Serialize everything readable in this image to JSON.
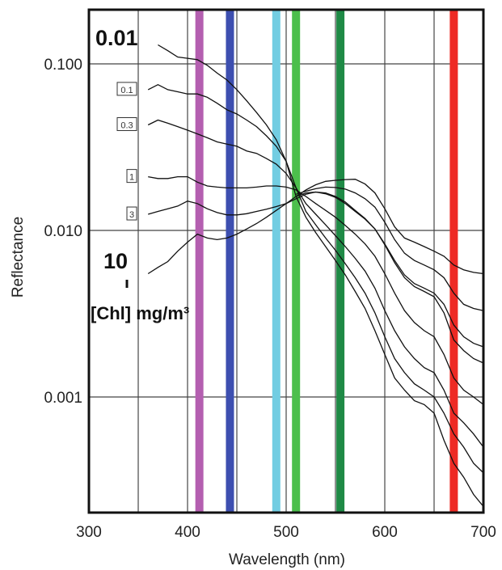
{
  "chart_data": {
    "type": "line",
    "title": "",
    "xlabel": "Wavelength (nm)",
    "ylabel": "Reflectance",
    "xlim": [
      300,
      700
    ],
    "ylim": [
      0.0002,
      0.2
    ],
    "yscale": "log",
    "grid": true,
    "x_ticks": [
      "300",
      "400",
      "500",
      "600",
      "700"
    ],
    "y_ticks": [
      "0.100",
      "0.010",
      "0.001"
    ],
    "y_tick_values": [
      0.1,
      0.01,
      0.001
    ],
    "legend_title": "[Chl] mg/m³",
    "series": [
      {
        "name": "0.01",
        "x": [
          370,
          380,
          390,
          400,
          410,
          420,
          430,
          440,
          450,
          460,
          470,
          480,
          490,
          500,
          510,
          520,
          530,
          540,
          550,
          560,
          570,
          580,
          590,
          600,
          610,
          620,
          630,
          640,
          650,
          660,
          670,
          680,
          690,
          700
        ],
        "values": [
          0.13,
          0.12,
          0.11,
          0.108,
          0.106,
          0.098,
          0.088,
          0.08,
          0.07,
          0.06,
          0.051,
          0.043,
          0.035,
          0.026,
          0.016,
          0.012,
          0.0097,
          0.008,
          0.0066,
          0.0054,
          0.0043,
          0.0034,
          0.0025,
          0.0018,
          0.0013,
          0.0011,
          0.00095,
          0.0009,
          0.0008,
          0.00055,
          0.0004,
          0.00033,
          0.00026,
          0.00022
        ]
      },
      {
        "name": "0.1",
        "x": [
          360,
          370,
          380,
          390,
          400,
          410,
          420,
          430,
          440,
          450,
          460,
          470,
          480,
          490,
          500,
          510,
          520,
          530,
          540,
          550,
          560,
          570,
          580,
          590,
          600,
          610,
          620,
          630,
          640,
          650,
          660,
          670,
          680,
          690,
          700
        ],
        "values": [
          0.07,
          0.075,
          0.07,
          0.068,
          0.066,
          0.066,
          0.063,
          0.058,
          0.053,
          0.05,
          0.046,
          0.042,
          0.037,
          0.032,
          0.026,
          0.018,
          0.013,
          0.0108,
          0.009,
          0.0076,
          0.0063,
          0.0052,
          0.0042,
          0.0032,
          0.0023,
          0.0017,
          0.0014,
          0.0012,
          0.0011,
          0.001,
          0.0008,
          0.0006,
          0.0005,
          0.0004,
          0.00035
        ]
      },
      {
        "name": "0.3",
        "x": [
          360,
          370,
          380,
          390,
          400,
          410,
          420,
          430,
          440,
          450,
          460,
          470,
          480,
          490,
          500,
          510,
          520,
          530,
          540,
          550,
          560,
          570,
          580,
          590,
          600,
          610,
          620,
          630,
          640,
          650,
          660,
          670,
          680,
          690,
          700
        ],
        "values": [
          0.043,
          0.046,
          0.044,
          0.042,
          0.04,
          0.038,
          0.036,
          0.034,
          0.033,
          0.032,
          0.03,
          0.029,
          0.027,
          0.025,
          0.022,
          0.018,
          0.0145,
          0.0125,
          0.0108,
          0.0093,
          0.008,
          0.0068,
          0.0057,
          0.0045,
          0.0033,
          0.0025,
          0.002,
          0.0017,
          0.0015,
          0.0014,
          0.0011,
          0.0008,
          0.0007,
          0.0006,
          0.0005
        ]
      },
      {
        "name": "1",
        "x": [
          360,
          370,
          380,
          390,
          400,
          410,
          420,
          430,
          440,
          450,
          460,
          470,
          480,
          490,
          500,
          510,
          520,
          530,
          540,
          550,
          560,
          570,
          580,
          590,
          600,
          610,
          620,
          630,
          640,
          650,
          660,
          670,
          680,
          690,
          700
        ],
        "values": [
          0.021,
          0.0205,
          0.0205,
          0.021,
          0.021,
          0.0195,
          0.0185,
          0.0182,
          0.018,
          0.018,
          0.018,
          0.0182,
          0.0185,
          0.0185,
          0.0182,
          0.0175,
          0.016,
          0.0145,
          0.0132,
          0.012,
          0.0107,
          0.0095,
          0.0083,
          0.007,
          0.0055,
          0.0042,
          0.0033,
          0.0028,
          0.0025,
          0.0023,
          0.0018,
          0.0013,
          0.0011,
          0.001,
          0.0009
        ]
      },
      {
        "name": "3",
        "x": [
          360,
          370,
          380,
          390,
          400,
          410,
          420,
          430,
          440,
          450,
          460,
          470,
          480,
          490,
          500,
          510,
          520,
          530,
          540,
          550,
          560,
          570,
          580,
          590,
          600,
          610,
          620,
          630,
          640,
          650,
          660,
          670,
          680,
          690,
          700
        ],
        "values": [
          0.0125,
          0.013,
          0.0135,
          0.014,
          0.015,
          0.0145,
          0.0135,
          0.0128,
          0.0124,
          0.0124,
          0.0126,
          0.013,
          0.0134,
          0.0139,
          0.0145,
          0.0155,
          0.0165,
          0.017,
          0.0168,
          0.016,
          0.0148,
          0.0132,
          0.0118,
          0.0102,
          0.0082,
          0.0064,
          0.0052,
          0.0046,
          0.0043,
          0.004,
          0.0032,
          0.0022,
          0.0019,
          0.0017,
          0.0016
        ]
      },
      {
        "name": "10",
        "x": [
          360,
          370,
          380,
          390,
          400,
          410,
          420,
          430,
          440,
          450,
          460,
          470,
          480,
          490,
          500,
          510,
          520,
          530,
          540,
          550,
          560,
          570,
          580,
          590,
          600,
          610,
          620,
          630,
          640,
          650,
          660,
          670,
          680,
          690,
          700
        ],
        "values": [
          0.0055,
          0.006,
          0.0065,
          0.0075,
          0.0085,
          0.0095,
          0.009,
          0.0088,
          0.009,
          0.0095,
          0.0102,
          0.011,
          0.012,
          0.0132,
          0.0145,
          0.016,
          0.0175,
          0.0188,
          0.0197,
          0.02,
          0.0202,
          0.0203,
          0.019,
          0.0168,
          0.0135,
          0.0105,
          0.009,
          0.0085,
          0.008,
          0.0075,
          0.007,
          0.0062,
          0.0058,
          0.0056,
          0.0055
        ]
      },
      {
        "name": "",
        "x": [
          510,
          520,
          530,
          540,
          550,
          560,
          570,
          580,
          590,
          600,
          610,
          620,
          630,
          640,
          650,
          660,
          670,
          680,
          690,
          700
        ],
        "values": [
          0.0165,
          0.0172,
          0.0178,
          0.0182,
          0.0181,
          0.0177,
          0.0168,
          0.0155,
          0.0138,
          0.0112,
          0.0088,
          0.0073,
          0.0066,
          0.0062,
          0.0058,
          0.0052,
          0.0042,
          0.0036,
          0.0034,
          0.0033
        ]
      },
      {
        "name": "",
        "x": [
          510,
          520,
          530,
          540,
          550,
          560,
          570,
          580,
          590,
          600,
          610,
          620,
          630,
          640,
          650,
          660,
          670,
          680,
          690,
          700
        ],
        "values": [
          0.016,
          0.0168,
          0.017,
          0.0166,
          0.0158,
          0.0145,
          0.013,
          0.0117,
          0.0102,
          0.0083,
          0.0066,
          0.0054,
          0.0048,
          0.0045,
          0.0042,
          0.0036,
          0.0027,
          0.0023,
          0.0021,
          0.002
        ]
      }
    ],
    "bands": [
      {
        "wavelength": 412,
        "color": "#b45fb0"
      },
      {
        "wavelength": 443,
        "color": "#3d4fb0"
      },
      {
        "wavelength": 490,
        "color": "#72cde2"
      },
      {
        "wavelength": 510,
        "color": "#4cbf4c"
      },
      {
        "wavelength": 555,
        "color": "#1f8a46"
      },
      {
        "wavelength": 670,
        "color": "#ee2a24"
      }
    ]
  }
}
